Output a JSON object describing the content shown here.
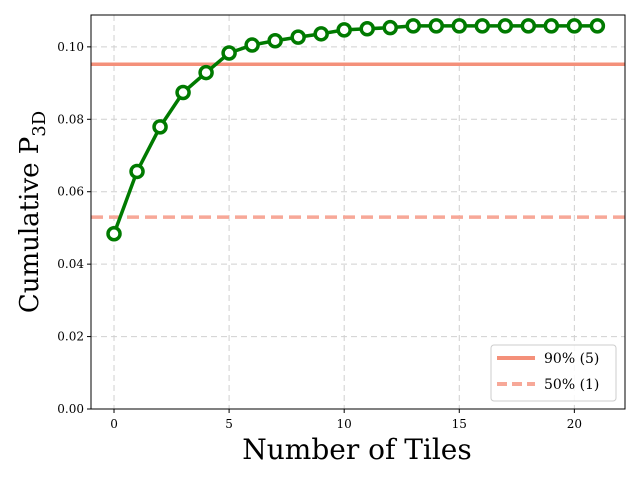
{
  "chart_data": {
    "type": "line",
    "title": "",
    "xlabel": "Number of Tiles",
    "ylabel": {
      "main": "Cumulative P",
      "subscript": "3D"
    },
    "xlim": [
      -1,
      22.2
    ],
    "ylim": [
      0,
      0.1088
    ],
    "x_ticks": [
      0,
      5,
      10,
      15,
      20
    ],
    "x_tick_labels": [
      "0",
      "5",
      "10",
      "15",
      "20"
    ],
    "y_ticks": [
      0.0,
      0.02,
      0.04,
      0.06,
      0.08,
      0.1
    ],
    "y_tick_labels": [
      "0.00",
      "0.02",
      "0.04",
      "0.06",
      "0.08",
      "0.10"
    ],
    "grid": true,
    "legend_position": "bottom-right",
    "series": [
      {
        "type": "line",
        "color": "#007a00",
        "marker": "open-circle",
        "x": [
          0,
          1,
          2,
          3,
          4,
          5,
          6,
          7,
          8,
          9,
          10,
          11,
          12,
          13,
          14,
          15,
          16,
          17,
          18,
          19,
          20,
          21
        ],
        "y": [
          0.0484,
          0.0656,
          0.0779,
          0.0874,
          0.0929,
          0.0983,
          0.1005,
          0.1017,
          0.1027,
          0.1036,
          0.1047,
          0.105,
          0.1053,
          0.1058,
          0.1058,
          0.1058,
          0.1058,
          0.1058,
          0.1058,
          0.1058,
          0.1058,
          0.1058
        ]
      }
    ],
    "reference_lines": [
      {
        "label": "90% (5)",
        "y": 0.0952,
        "color": "#f4907a",
        "style": "solid"
      },
      {
        "label": "50% (1)",
        "y": 0.053,
        "color": "#f7a898",
        "style": "dashed"
      }
    ]
  }
}
